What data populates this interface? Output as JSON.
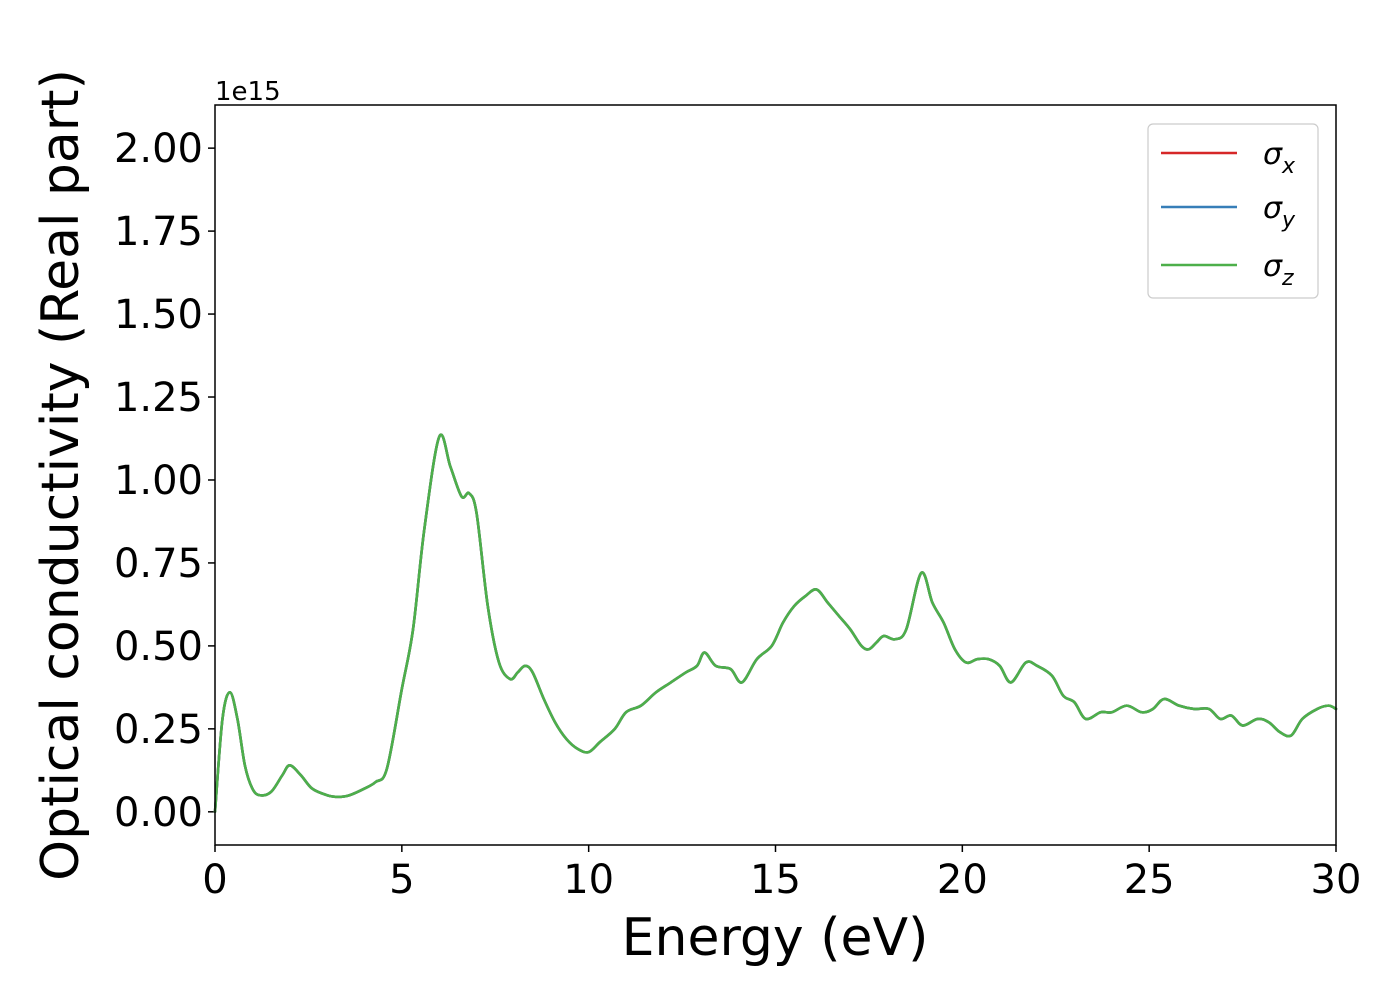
{
  "chart_data": {
    "type": "line",
    "title": "",
    "xlabel": "Energy (eV)",
    "ylabel": "Optical conductivity (Real part)",
    "y_offset_label": "1e15",
    "xlim": [
      0,
      30
    ],
    "ylim": [
      -0.1,
      2.13
    ],
    "x_ticks": [
      0,
      5,
      10,
      15,
      20,
      25,
      30
    ],
    "x_tick_labels": [
      "0",
      "5",
      "10",
      "15",
      "20",
      "25",
      "30"
    ],
    "y_ticks": [
      0,
      0.25,
      0.5,
      0.75,
      1.0,
      1.25,
      1.5,
      1.75,
      2.0
    ],
    "y_tick_labels": [
      "0.00",
      "0.25",
      "0.50",
      "0.75",
      "1.00",
      "1.25",
      "1.50",
      "1.75",
      "2.00"
    ],
    "grid": false,
    "legend_position": "top-right",
    "x": [
      0,
      0.2,
      0.4,
      0.6,
      0.8,
      1.0,
      1.2,
      1.5,
      1.8,
      2.0,
      2.3,
      2.6,
      3.0,
      3.3,
      3.6,
      4.0,
      4.3,
      4.6,
      5.0,
      5.3,
      5.6,
      6.0,
      6.3,
      6.6,
      6.8,
      7.0,
      7.3,
      7.6,
      7.9,
      8.1,
      8.3,
      8.5,
      8.8,
      9.1,
      9.4,
      9.7,
      10.0,
      10.3,
      10.7,
      11.0,
      11.4,
      11.8,
      12.2,
      12.6,
      12.9,
      13.1,
      13.4,
      13.8,
      14.1,
      14.5,
      14.9,
      15.2,
      15.5,
      15.8,
      16.1,
      16.4,
      16.7,
      17.0,
      17.3,
      17.5,
      17.7,
      17.9,
      18.2,
      18.5,
      18.9,
      19.2,
      19.5,
      19.8,
      20.1,
      20.4,
      20.7,
      21.0,
      21.3,
      21.7,
      22.0,
      22.4,
      22.7,
      23.0,
      23.3,
      23.7,
      24.0,
      24.4,
      24.8,
      25.1,
      25.4,
      25.8,
      26.2,
      26.6,
      26.9,
      27.2,
      27.5,
      27.9,
      28.2,
      28.5,
      28.8,
      29.1,
      29.5,
      29.8,
      30.0
    ],
    "series": [
      {
        "name": "σ_x",
        "color": "#d62728",
        "values": [
          0.0,
          0.28,
          0.36,
          0.28,
          0.14,
          0.07,
          0.05,
          0.06,
          0.11,
          0.14,
          0.11,
          0.07,
          0.05,
          0.045,
          0.05,
          0.07,
          0.09,
          0.13,
          0.37,
          0.55,
          0.85,
          1.13,
          1.04,
          0.95,
          0.96,
          0.9,
          0.62,
          0.45,
          0.4,
          0.42,
          0.44,
          0.42,
          0.34,
          0.27,
          0.22,
          0.19,
          0.18,
          0.21,
          0.25,
          0.3,
          0.32,
          0.36,
          0.39,
          0.42,
          0.44,
          0.48,
          0.44,
          0.43,
          0.39,
          0.46,
          0.5,
          0.57,
          0.62,
          0.65,
          0.67,
          0.63,
          0.59,
          0.55,
          0.5,
          0.49,
          0.51,
          0.53,
          0.52,
          0.55,
          0.72,
          0.63,
          0.57,
          0.49,
          0.45,
          0.46,
          0.46,
          0.44,
          0.39,
          0.45,
          0.44,
          0.41,
          0.35,
          0.33,
          0.28,
          0.3,
          0.3,
          0.32,
          0.3,
          0.31,
          0.34,
          0.32,
          0.31,
          0.31,
          0.28,
          0.29,
          0.26,
          0.28,
          0.27,
          0.24,
          0.23,
          0.28,
          0.31,
          0.32,
          0.31
        ]
      },
      {
        "name": "σ_y",
        "color": "#377eb8",
        "values": [
          0.0,
          0.28,
          0.36,
          0.28,
          0.14,
          0.07,
          0.05,
          0.06,
          0.11,
          0.14,
          0.11,
          0.07,
          0.05,
          0.045,
          0.05,
          0.07,
          0.09,
          0.13,
          0.37,
          0.55,
          0.85,
          1.13,
          1.04,
          0.95,
          0.96,
          0.9,
          0.62,
          0.45,
          0.4,
          0.42,
          0.44,
          0.42,
          0.34,
          0.27,
          0.22,
          0.19,
          0.18,
          0.21,
          0.25,
          0.3,
          0.32,
          0.36,
          0.39,
          0.42,
          0.44,
          0.48,
          0.44,
          0.43,
          0.39,
          0.46,
          0.5,
          0.57,
          0.62,
          0.65,
          0.67,
          0.63,
          0.59,
          0.55,
          0.5,
          0.49,
          0.51,
          0.53,
          0.52,
          0.55,
          0.72,
          0.63,
          0.57,
          0.49,
          0.45,
          0.46,
          0.46,
          0.44,
          0.39,
          0.45,
          0.44,
          0.41,
          0.35,
          0.33,
          0.28,
          0.3,
          0.3,
          0.32,
          0.3,
          0.31,
          0.34,
          0.32,
          0.31,
          0.31,
          0.28,
          0.29,
          0.26,
          0.28,
          0.27,
          0.24,
          0.23,
          0.28,
          0.31,
          0.32,
          0.31
        ]
      },
      {
        "name": "σ_z",
        "color": "#4daf4a",
        "values": [
          0.0,
          0.28,
          0.36,
          0.28,
          0.14,
          0.07,
          0.05,
          0.06,
          0.11,
          0.14,
          0.11,
          0.07,
          0.05,
          0.045,
          0.05,
          0.07,
          0.09,
          0.13,
          0.37,
          0.55,
          0.85,
          1.13,
          1.04,
          0.95,
          0.96,
          0.9,
          0.62,
          0.45,
          0.4,
          0.42,
          0.44,
          0.42,
          0.34,
          0.27,
          0.22,
          0.19,
          0.18,
          0.21,
          0.25,
          0.3,
          0.32,
          0.36,
          0.39,
          0.42,
          0.44,
          0.48,
          0.44,
          0.43,
          0.39,
          0.46,
          0.5,
          0.57,
          0.62,
          0.65,
          0.67,
          0.63,
          0.59,
          0.55,
          0.5,
          0.49,
          0.51,
          0.53,
          0.52,
          0.55,
          0.72,
          0.63,
          0.57,
          0.49,
          0.45,
          0.46,
          0.46,
          0.44,
          0.39,
          0.45,
          0.44,
          0.41,
          0.35,
          0.33,
          0.28,
          0.3,
          0.3,
          0.32,
          0.3,
          0.31,
          0.34,
          0.32,
          0.31,
          0.31,
          0.28,
          0.29,
          0.26,
          0.28,
          0.27,
          0.24,
          0.23,
          0.28,
          0.31,
          0.32,
          0.31
        ]
      }
    ],
    "legend": [
      {
        "symbol": "σ",
        "subscript": "x"
      },
      {
        "symbol": "σ",
        "subscript": "y"
      },
      {
        "symbol": "σ",
        "subscript": "z"
      }
    ]
  }
}
